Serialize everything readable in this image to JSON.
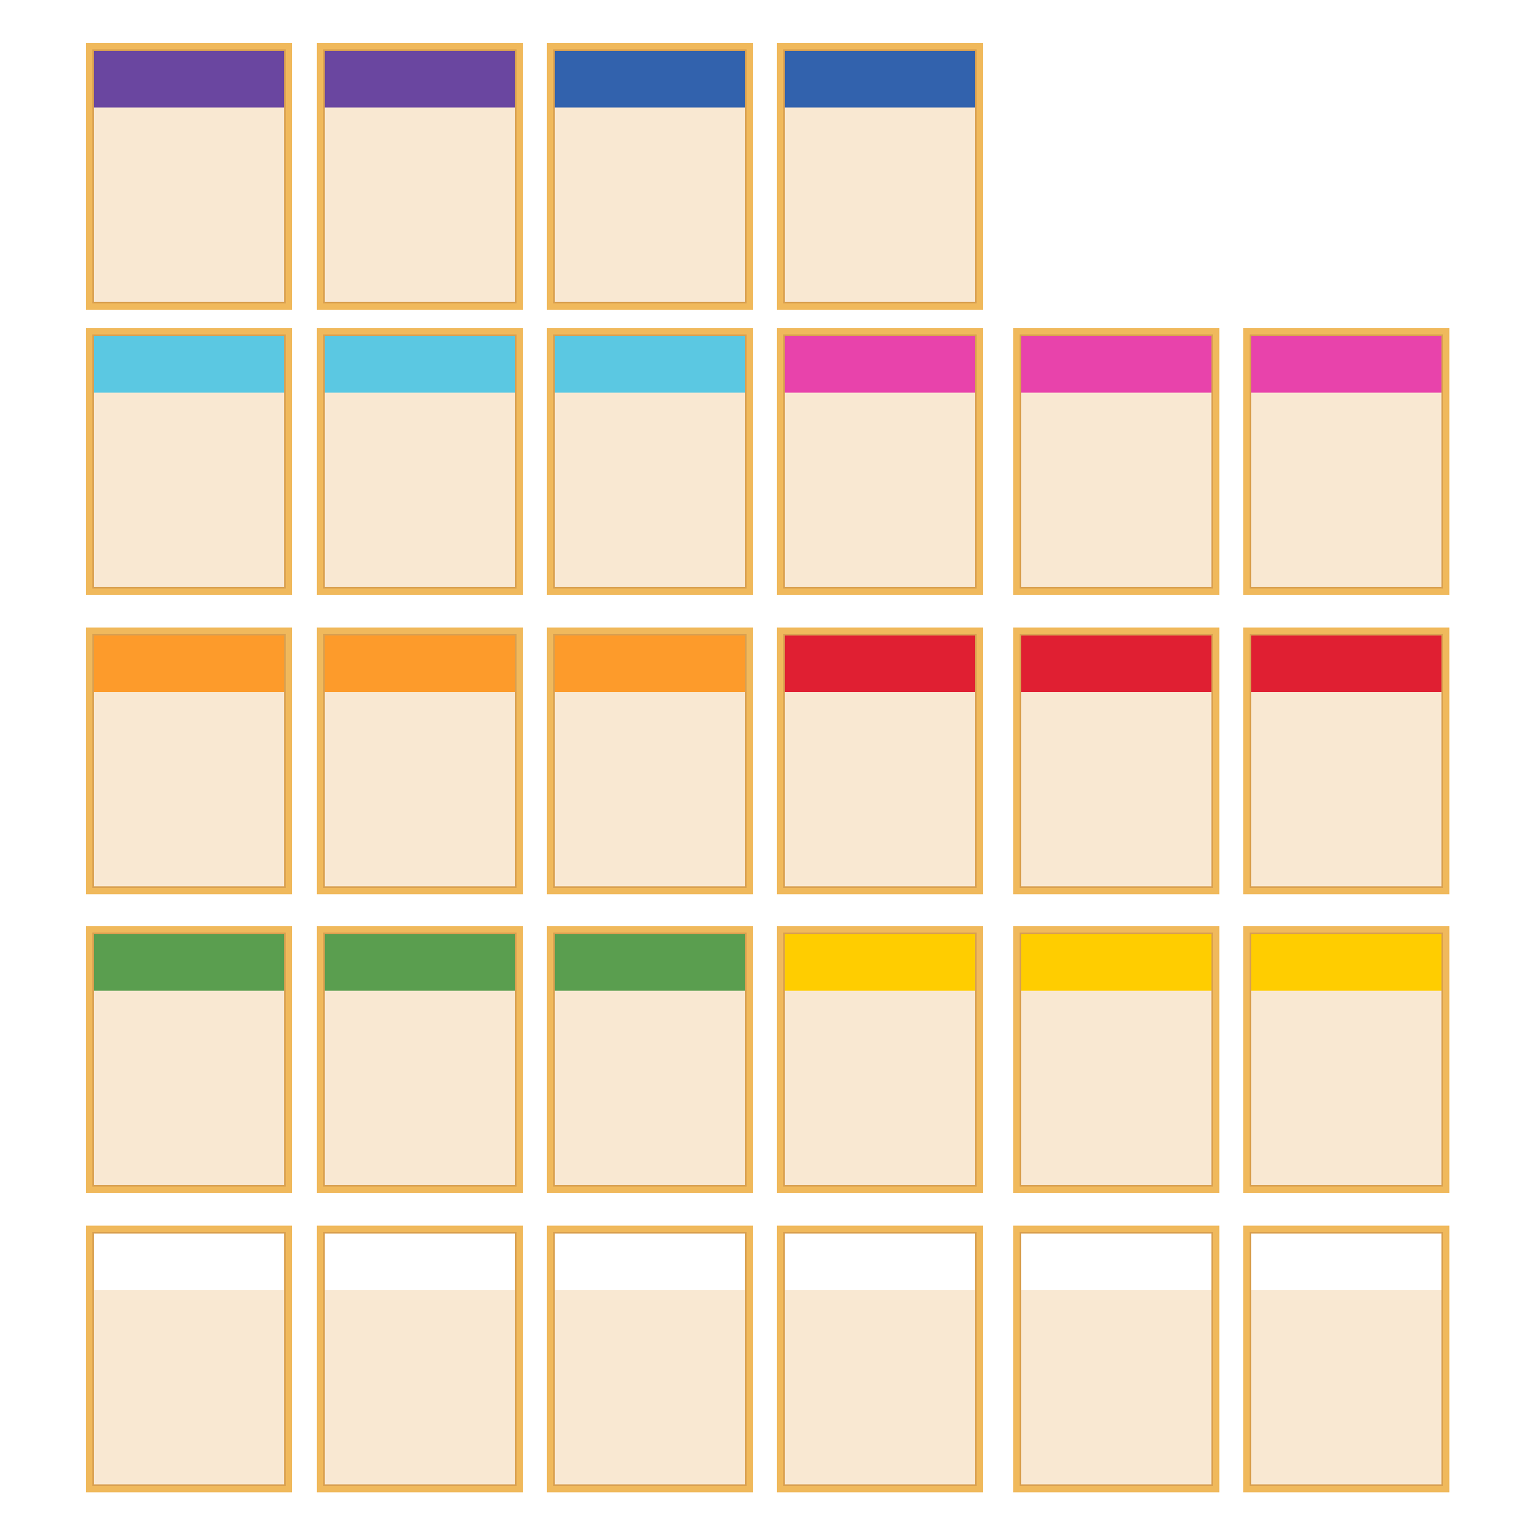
{
  "card_style": {
    "border_color": "#f0b95c",
    "body_color": "#f9e8d2"
  },
  "rows": [
    {
      "group": "purple",
      "color": "#6a46a0",
      "count": 2
    },
    {
      "group": "dark-blue",
      "color": "#3262ad",
      "count": 2
    },
    {
      "group": "light-blue",
      "color": "#5bc8e2",
      "count": 3
    },
    {
      "group": "pink",
      "color": "#e843ab",
      "count": 3
    },
    {
      "group": "orange",
      "color": "#fd9b2b",
      "count": 3
    },
    {
      "group": "red",
      "color": "#e01f32",
      "count": 3
    },
    {
      "group": "green",
      "color": "#5a9e4f",
      "count": 3
    },
    {
      "group": "yellow",
      "color": "#ffcd00",
      "count": 3
    },
    {
      "group": "white",
      "color": "#ffffff",
      "count": 6
    }
  ]
}
